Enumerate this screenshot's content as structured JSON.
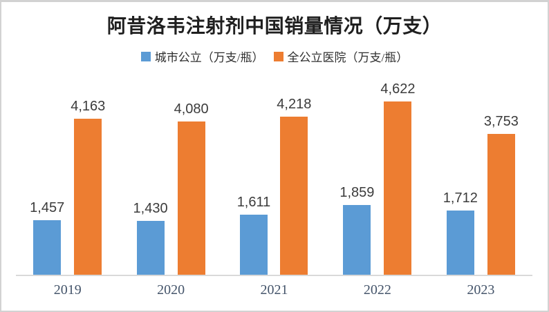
{
  "chart_data": {
    "type": "bar",
    "title": "阿昔洛韦注射剂中国销量情况（万支）",
    "categories": [
      "2019",
      "2020",
      "2021",
      "2022",
      "2023"
    ],
    "series": [
      {
        "name": "城市公立（万支/瓶）",
        "color": "#5B9BD5",
        "values": [
          1457,
          1430,
          1611,
          1859,
          1712
        ]
      },
      {
        "name": "全公立医院（万支/瓶）",
        "color": "#ED7D31",
        "values": [
          4163,
          4080,
          4218,
          4622,
          3753
        ]
      }
    ],
    "xlabel": "",
    "ylabel": "",
    "ylim": [
      0,
      5000
    ],
    "grid": false,
    "legend_position": "top",
    "data_labels": true,
    "number_format": "#,##0",
    "axis_line_color": "#D9D9D9",
    "year_label_color": "#44546A",
    "value_label_color": "#3B3B3B",
    "title_color": "#1F1F1F"
  }
}
